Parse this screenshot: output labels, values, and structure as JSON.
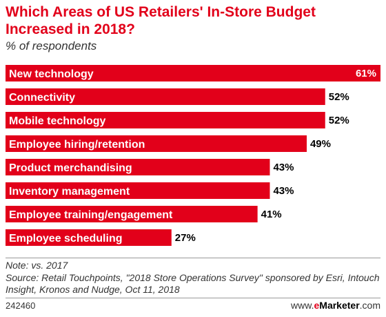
{
  "title": "Which Areas of US Retailers' In-Store Budget Increased in 2018?",
  "subtitle": "% of respondents",
  "colors": {
    "bar": "#e2001a",
    "title": "#e2001a"
  },
  "chart_data": {
    "type": "bar",
    "orientation": "horizontal",
    "categories": [
      "New technology",
      "Connectivity",
      "Mobile technology",
      "Employee hiring/retention",
      "Product merchandising",
      "Inventory management",
      "Employee training/engagement",
      "Employee scheduling"
    ],
    "values": [
      61,
      52,
      52,
      49,
      43,
      43,
      41,
      27
    ],
    "value_labels": [
      "61%",
      "52%",
      "52%",
      "49%",
      "43%",
      "43%",
      "41%",
      "27%"
    ],
    "unit": "%",
    "xlim": [
      0,
      61
    ],
    "grid": false,
    "legend": "none"
  },
  "note": "Note: vs. 2017",
  "source": "Source: Retail Touchpoints, \"2018 Store Operations Survey\" sponsored by Esri, Intouch Insight, Kronos and Nudge, Oct 11, 2018",
  "footer": {
    "chart_id": "242460",
    "brand_prefix": "www.",
    "brand_e": "e",
    "brand_name": "Marketer",
    "brand_suffix": ".com"
  }
}
